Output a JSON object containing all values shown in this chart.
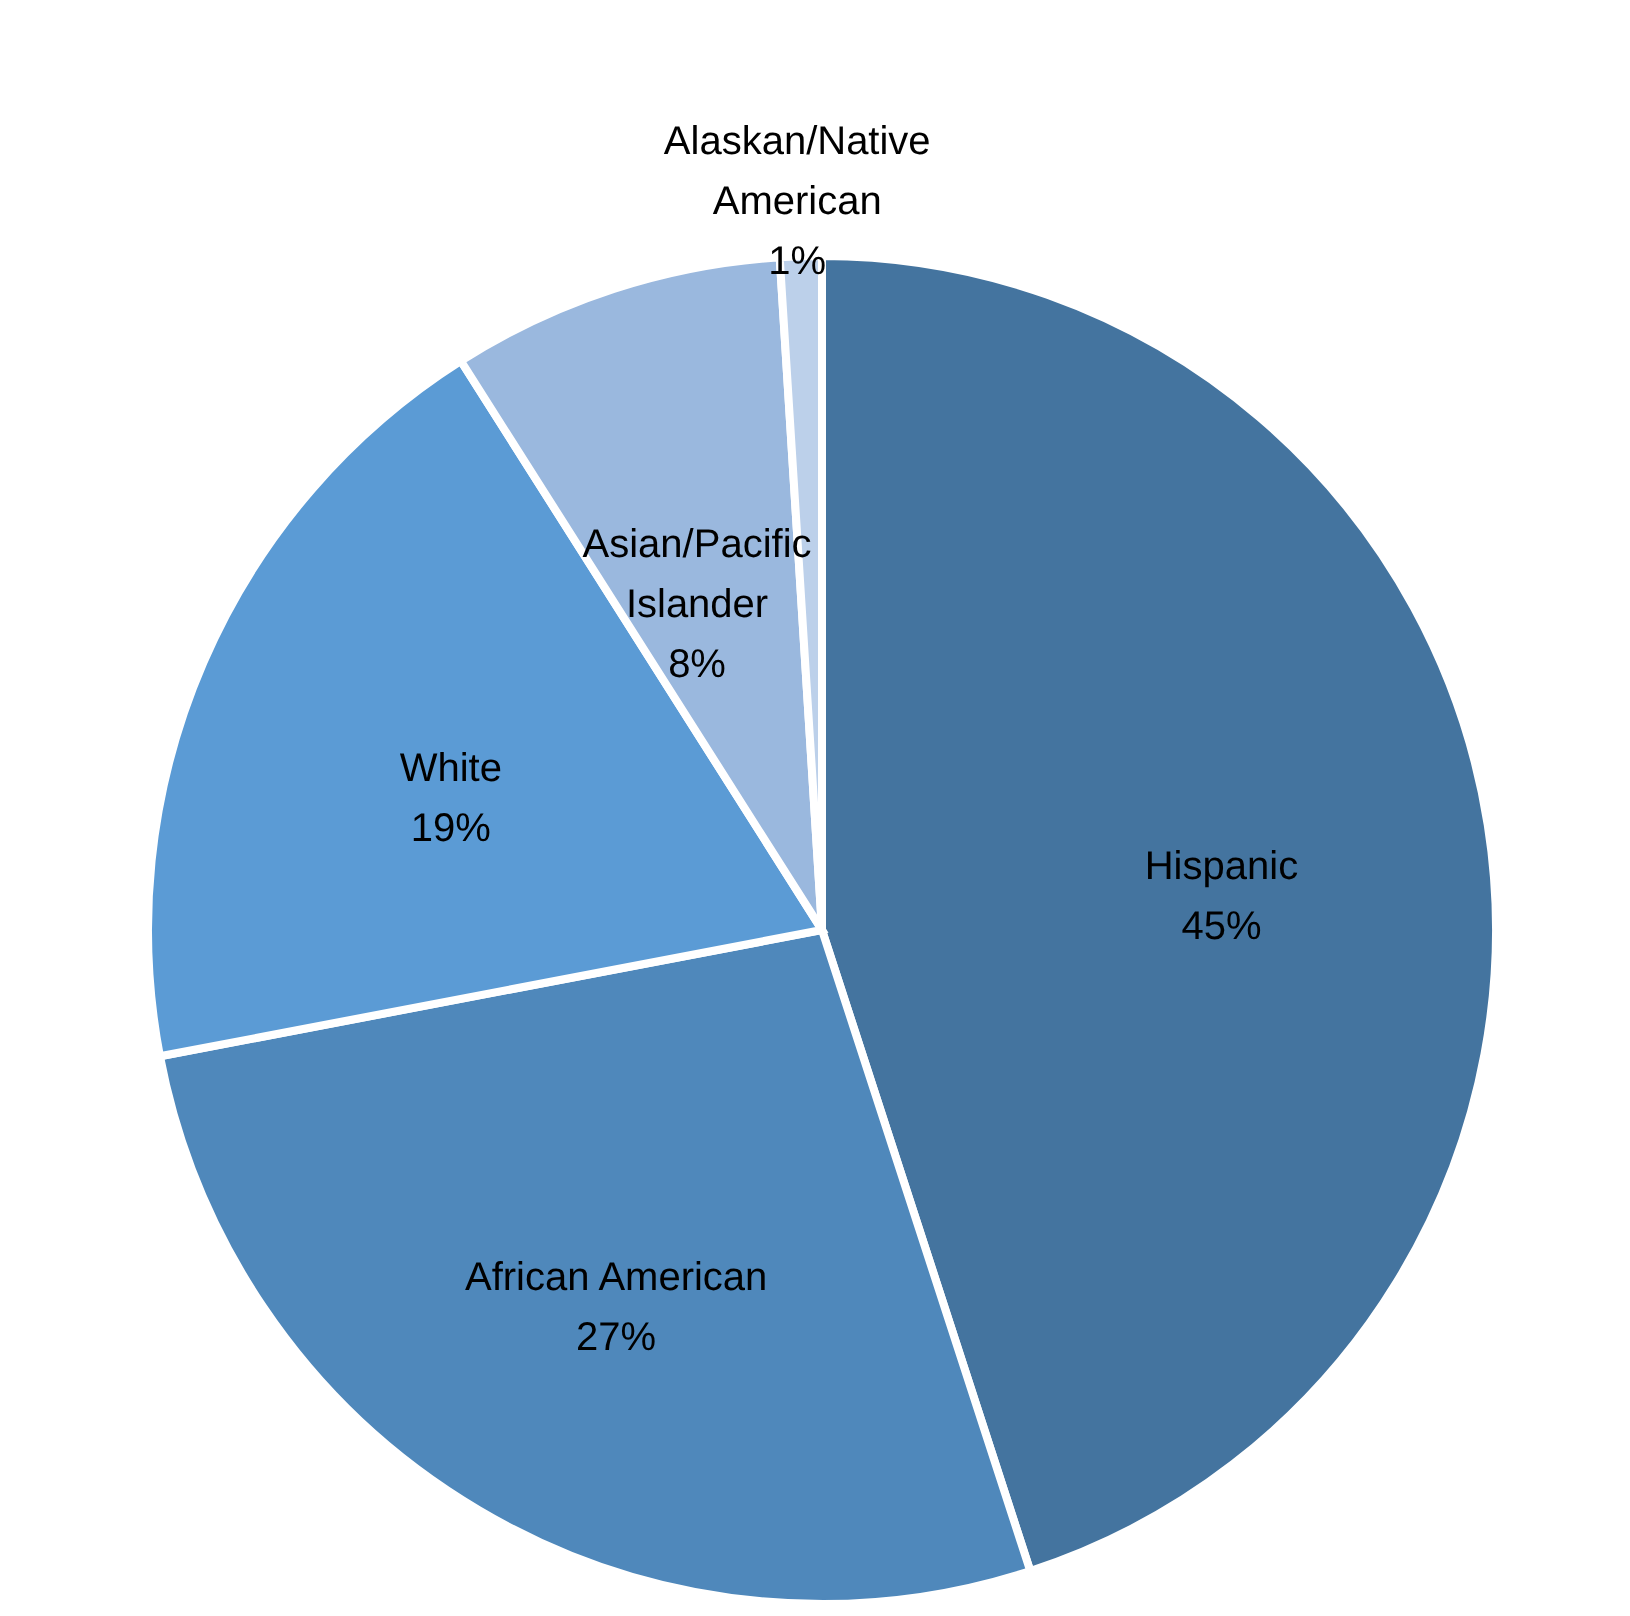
{
  "chart_data": {
    "type": "pie",
    "categories": [
      "Hispanic",
      "African American",
      "White",
      "Asian/Pacific Islander",
      "Alaskan/Native American"
    ],
    "values": [
      45,
      27,
      19,
      8,
      1
    ],
    "colors": [
      "#44749f",
      "#4f88bb",
      "#5b9bd5",
      "#9ab8de",
      "#bcd0ea"
    ],
    "value_labels": [
      "45%",
      "27%",
      "19%",
      "8%",
      "1%"
    ]
  }
}
